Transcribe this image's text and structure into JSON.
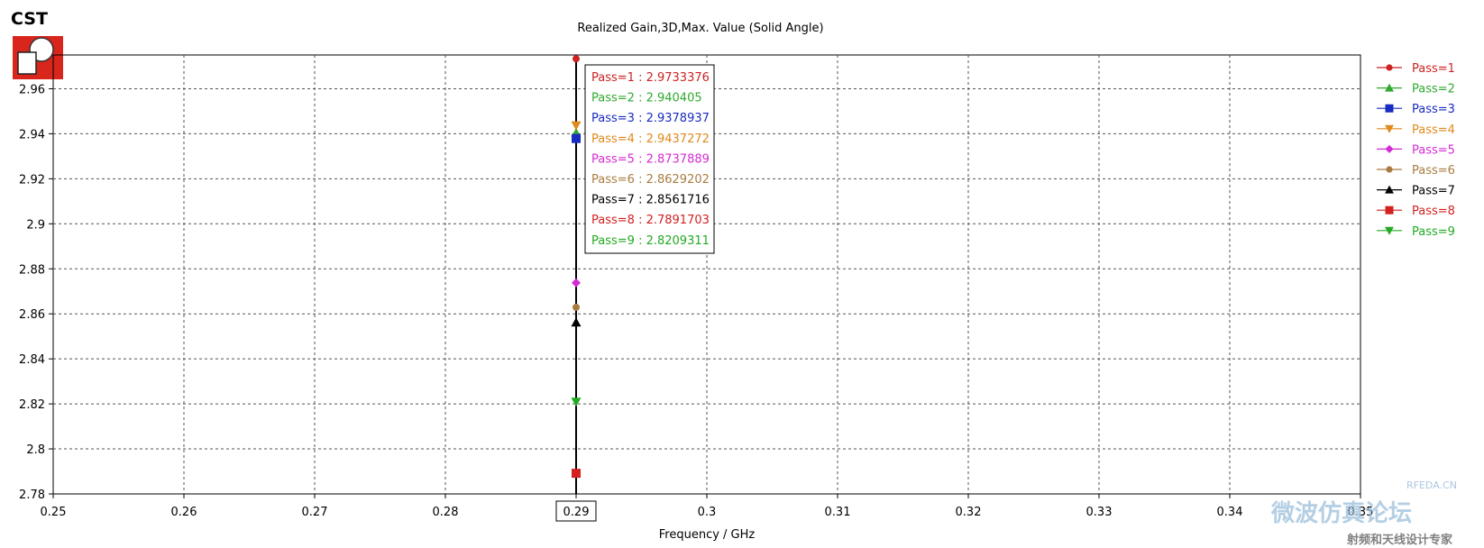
{
  "logo": {
    "text": "CST"
  },
  "chart_data": {
    "type": "scatter",
    "title": "Realized Gain,3D,Max. Value (Solid Angle)",
    "xlabel": "Frequency / GHz",
    "ylabel": "",
    "xlim": [
      0.25,
      0.35
    ],
    "ylim": [
      2.78,
      2.975
    ],
    "xticks": [
      0.25,
      0.26,
      0.27,
      0.28,
      0.29,
      0.3,
      0.31,
      0.32,
      0.33,
      0.34,
      0.35
    ],
    "xtick_labels": [
      "0.25",
      "0.26",
      "0.27",
      "0.28",
      "0.29",
      "0.3",
      "0.31",
      "0.32",
      "0.33",
      "0.34",
      "0.35"
    ],
    "yticks": [
      2.78,
      2.8,
      2.82,
      2.84,
      2.86,
      2.88,
      2.9,
      2.92,
      2.94,
      2.96
    ],
    "ytick_labels": [
      "2.78",
      "2.8",
      "2.82",
      "2.84",
      "2.86",
      "2.88",
      "2.9",
      "2.92",
      "2.94",
      "2.96"
    ],
    "grid": true,
    "legend_position": "right",
    "marker_x": 0.29,
    "highlighted_xtick": "0.29",
    "series": [
      {
        "name": "Pass=1",
        "x": 0.29,
        "y": 2.9733376,
        "color": "#cc2222",
        "marker": "circle"
      },
      {
        "name": "Pass=2",
        "x": 0.29,
        "y": 2.940405,
        "color": "#2eaa2e",
        "marker": "triangle-up"
      },
      {
        "name": "Pass=3",
        "x": 0.29,
        "y": 2.9378937,
        "color": "#1a2bc0",
        "marker": "square"
      },
      {
        "name": "Pass=4",
        "x": 0.29,
        "y": 2.9437272,
        "color": "#e08a1c",
        "marker": "triangle-down"
      },
      {
        "name": "Pass=5",
        "x": 0.29,
        "y": 2.8737889,
        "color": "#d42bd4",
        "marker": "diamond"
      },
      {
        "name": "Pass=6",
        "x": 0.29,
        "y": 2.8629202,
        "color": "#a87c40",
        "marker": "circle"
      },
      {
        "name": "Pass=7",
        "x": 0.29,
        "y": 2.8561716,
        "color": "#000000",
        "marker": "triangle-up"
      },
      {
        "name": "Pass=8",
        "x": 0.29,
        "y": 2.7891703,
        "color": "#d42020",
        "marker": "square"
      },
      {
        "name": "Pass=9",
        "x": 0.29,
        "y": 2.8209311,
        "color": "#22aa22",
        "marker": "triangle-down"
      }
    ],
    "readout": [
      {
        "text": "Pass=1 : 2.9733376",
        "color": "#cc2222"
      },
      {
        "text": "Pass=2 : 2.940405",
        "color": "#2eaa2e"
      },
      {
        "text": "Pass=3 : 2.9378937",
        "color": "#1a2bc0"
      },
      {
        "text": "Pass=4 : 2.9437272",
        "color": "#e08a1c"
      },
      {
        "text": "Pass=5 : 2.8737889",
        "color": "#d42bd4"
      },
      {
        "text": "Pass=6 : 2.8629202",
        "color": "#a87c40"
      },
      {
        "text": "Pass=7 : 2.8561716",
        "color": "#000000"
      },
      {
        "text": "Pass=8 : 2.7891703",
        "color": "#d42020"
      },
      {
        "text": "Pass=9 : 2.8209311",
        "color": "#22aa22"
      }
    ]
  },
  "watermark": {
    "site": "RFEDA.CN",
    "brand": "微波仿真论坛",
    "tagline": "射频和天线设计专家"
  }
}
